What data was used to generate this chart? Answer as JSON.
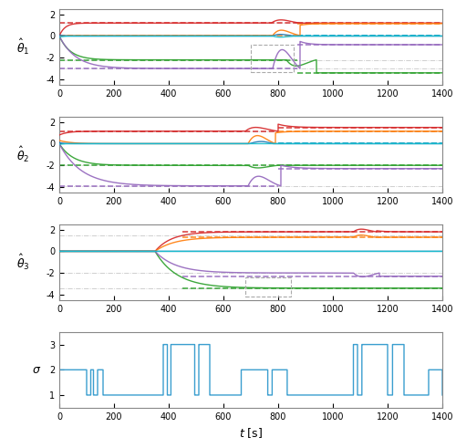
{
  "xlim": [
    0,
    1400
  ],
  "ylim_theta": [
    -4.5,
    2.5
  ],
  "ylim_sigma": [
    0.5,
    3.5
  ],
  "yticks_theta": [
    -4,
    -2,
    0,
    2
  ],
  "yticks_sigma": [
    1,
    2,
    3
  ],
  "xticks": [
    0,
    200,
    400,
    600,
    800,
    1000,
    1200,
    1400
  ],
  "colors": [
    "#d62728",
    "#ff7f0e",
    "#2ca02c",
    "#9467bd",
    "#1f77b4",
    "#17becf"
  ],
  "sigma_color": "#3a9ecf",
  "gray_dashdot": "#999999",
  "panel1_true": [
    1.2,
    0.05,
    -2.2,
    -3.0,
    0.0,
    0.0
  ],
  "panel2_true": [
    1.15,
    0.0,
    -2.0,
    -3.9,
    0.05,
    0.05
  ],
  "panel3_true": [
    1.8,
    1.3,
    -3.4,
    -2.0,
    0.0,
    0.0
  ],
  "panel1_gray": [
    1.2,
    -2.2,
    -3.0
  ],
  "panel2_gray": [
    1.15,
    -2.0,
    -3.9
  ],
  "panel3_gray": [
    1.5,
    -2.0,
    -3.4
  ],
  "lw_solid": 1.0,
  "lw_dash": 1.2,
  "figsize": [
    5.0,
    4.91
  ],
  "dpi": 100
}
